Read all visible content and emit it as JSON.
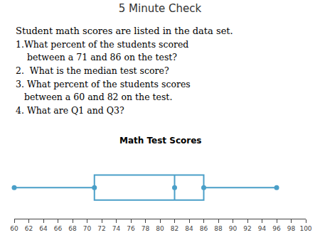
{
  "chart_data": {
    "type": "box",
    "title": "5 Minute Check",
    "annotations": [
      "Student math scores are listed in the data set.",
      "1.What percent of the students scored",
      "    between a 71 and 86 on the test?",
      "2.  What is the median test score?",
      "3. What percent of the students scores",
      "   between a 60 and 82 on the test.",
      "4. What are Q1 and Q3?"
    ],
    "subtitle": "Math Test Scores",
    "min": 60,
    "q1": 71,
    "median": 82,
    "q3": 86,
    "max": 96,
    "xlim": [
      60,
      100
    ],
    "xticks": [
      60,
      62,
      64,
      66,
      68,
      70,
      72,
      74,
      76,
      78,
      80,
      82,
      84,
      86,
      88,
      90,
      92,
      94,
      96,
      98,
      100
    ],
    "color": "#4a9fc8",
    "marker": "circle",
    "grid": false,
    "tick_labels": "x"
  }
}
